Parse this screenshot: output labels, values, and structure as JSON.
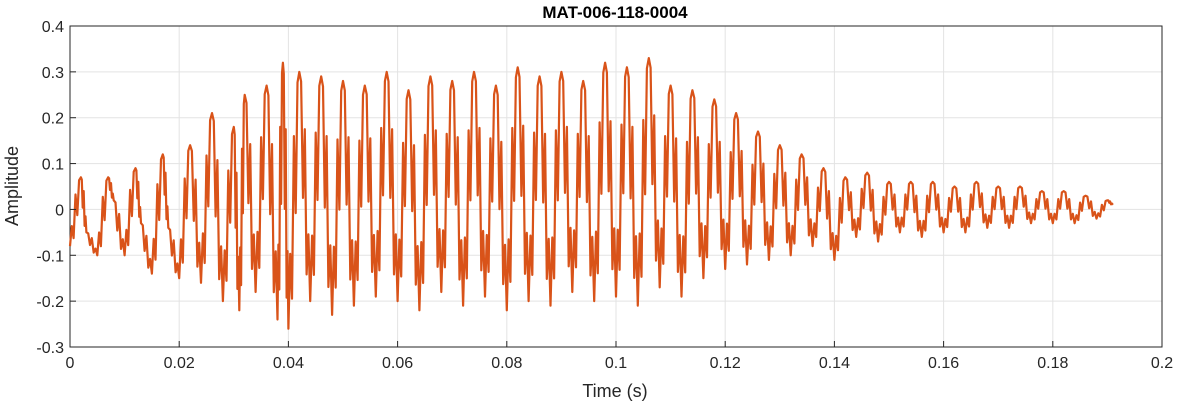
{
  "chart_data": {
    "type": "line",
    "title": "MAT-006-118-0004",
    "xlabel": "Time (s)",
    "ylabel": "Amplitude",
    "xlim": [
      0,
      0.2
    ],
    "ylim": [
      -0.3,
      0.4
    ],
    "xticks": [
      0,
      0.02,
      0.04,
      0.06,
      0.08,
      0.1,
      0.12,
      0.14,
      0.16,
      0.18,
      0.2
    ],
    "xtick_labels": [
      "0",
      "0.02",
      "0.04",
      "0.06",
      "0.08",
      "0.1",
      "0.12",
      "0.14",
      "0.16",
      "0.18",
      "0.2"
    ],
    "yticks": [
      -0.3,
      -0.2,
      -0.1,
      0,
      0.1,
      0.2,
      0.3,
      0.4
    ],
    "ytick_labels": [
      "-0.3",
      "-0.2",
      "-0.1",
      "0",
      "0.1",
      "0.2",
      "0.3",
      "0.4"
    ],
    "grid": true,
    "line_color": "#D95319",
    "series": [
      {
        "x": [
          0.0,
          0.002,
          0.003,
          0.005,
          0.007,
          0.008,
          0.01,
          0.012,
          0.013,
          0.015,
          0.017,
          0.018,
          0.02,
          0.022,
          0.024,
          0.026,
          0.028,
          0.03,
          0.031,
          0.032,
          0.034,
          0.036,
          0.038,
          0.039,
          0.04,
          0.042,
          0.044,
          0.046,
          0.048,
          0.05,
          0.052,
          0.054,
          0.056,
          0.058,
          0.06,
          0.062,
          0.064,
          0.066,
          0.068,
          0.07,
          0.072,
          0.074,
          0.076,
          0.078,
          0.08,
          0.082,
          0.084,
          0.086,
          0.088,
          0.09,
          0.092,
          0.094,
          0.096,
          0.098,
          0.1,
          0.102,
          0.104,
          0.106,
          0.108,
          0.11,
          0.112,
          0.114,
          0.116,
          0.118,
          0.12,
          0.122,
          0.124,
          0.126,
          0.128,
          0.13,
          0.132,
          0.134,
          0.136,
          0.138,
          0.14,
          0.142,
          0.144,
          0.146,
          0.148,
          0.15,
          0.152,
          0.154,
          0.156,
          0.158,
          0.16,
          0.162,
          0.164,
          0.166,
          0.168,
          0.17,
          0.172,
          0.174,
          0.176,
          0.178,
          0.18,
          0.182,
          0.184,
          0.186,
          0.188,
          0.19,
          0.191
        ],
        "y": [
          -0.08,
          0.07,
          -0.05,
          -0.1,
          0.07,
          0.02,
          -0.1,
          0.09,
          -0.03,
          -0.14,
          0.12,
          -0.04,
          -0.15,
          0.14,
          -0.16,
          0.21,
          -0.2,
          0.18,
          -0.22,
          0.25,
          -0.18,
          0.27,
          -0.24,
          0.32,
          -0.26,
          0.3,
          -0.2,
          0.29,
          -0.23,
          0.28,
          -0.21,
          0.27,
          -0.19,
          0.3,
          -0.2,
          0.26,
          -0.22,
          0.29,
          -0.18,
          0.28,
          -0.21,
          0.3,
          -0.19,
          0.27,
          -0.22,
          0.31,
          -0.2,
          0.29,
          -0.21,
          0.3,
          -0.18,
          0.28,
          -0.2,
          0.32,
          -0.19,
          0.31,
          -0.21,
          0.33,
          -0.17,
          0.27,
          -0.19,
          0.26,
          -0.15,
          0.24,
          -0.13,
          0.21,
          -0.12,
          0.17,
          -0.11,
          0.14,
          -0.1,
          0.12,
          -0.08,
          0.09,
          -0.11,
          0.07,
          -0.06,
          0.08,
          -0.07,
          0.06,
          -0.05,
          0.06,
          -0.06,
          0.06,
          -0.05,
          0.05,
          -0.05,
          0.06,
          -0.04,
          0.05,
          -0.04,
          0.05,
          -0.03,
          0.04,
          -0.03,
          0.04,
          -0.03,
          0.03,
          -0.02,
          0.02,
          0.01
        ]
      }
    ]
  }
}
